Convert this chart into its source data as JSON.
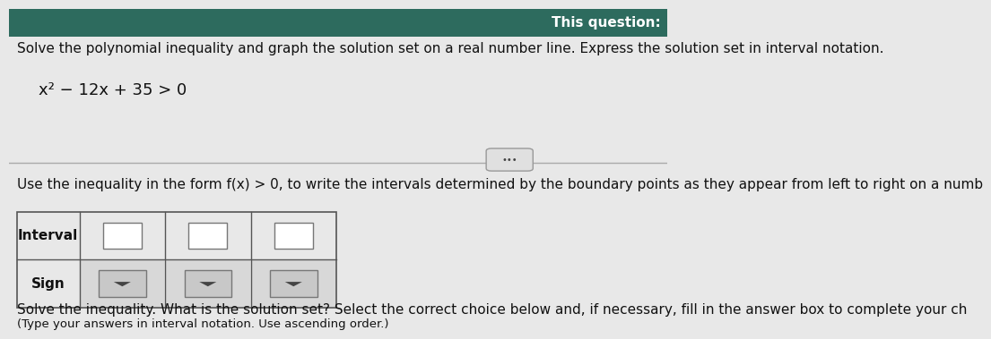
{
  "bg_color": "#f0f0f0",
  "header_bg": "#2d6b5e",
  "header_text": "This question:",
  "header_text_color": "#ffffff",
  "body_bg": "#e8e8e8",
  "main_text_line1": "Solve the polynomial inequality and graph the solution set on a real number line. Express the solution set in interval notation.",
  "equation": "x² − 12x + 35 > 0",
  "more_button_text": "•••",
  "instruction_text": "Use the inequality in the form f(x) > 0, to write the intervals determined by the boundary points as they appear from left to right on a numb",
  "caption_text": "(Type your answers in interval notation. Use ascending order.)",
  "bottom_text": "Solve the inequality. What is the solution set? Select the correct choice below and, if necessary, fill in the answer box to complete your ch",
  "font_size_main": 11,
  "font_size_eq": 13,
  "font_size_small": 9.5
}
